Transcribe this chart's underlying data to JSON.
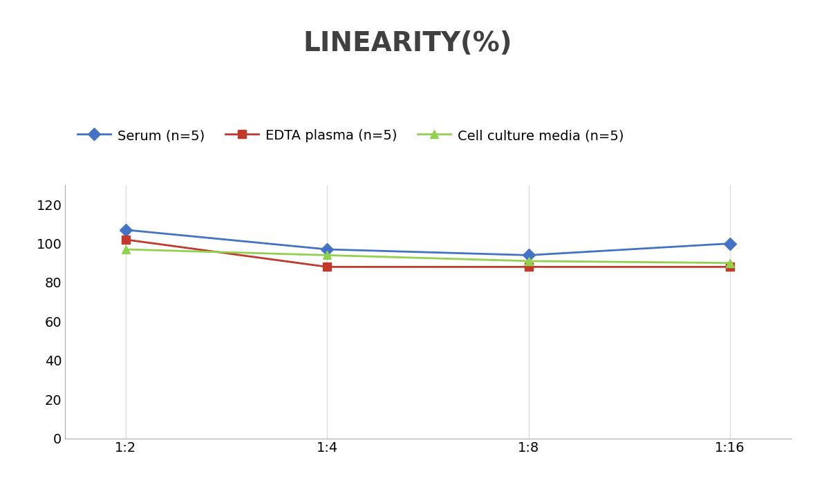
{
  "title": "LINEARITY(%)",
  "x_labels": [
    "1:2",
    "1:4",
    "1:8",
    "1:16"
  ],
  "series": [
    {
      "label": "Serum (n=5)",
      "values": [
        107,
        97,
        94,
        100
      ],
      "color": "#4472C4",
      "marker": "D",
      "marker_color": "#4472C4"
    },
    {
      "label": "EDTA plasma (n=5)",
      "values": [
        102,
        88,
        88,
        88
      ],
      "color": "#C0392B",
      "marker": "s",
      "marker_color": "#C0392B"
    },
    {
      "label": "Cell culture media (n=5)",
      "values": [
        97,
        94,
        91,
        90
      ],
      "color": "#92D050",
      "marker": "^",
      "marker_color": "#92D050"
    }
  ],
  "ylim": [
    0,
    130
  ],
  "yticks": [
    0,
    20,
    40,
    60,
    80,
    100,
    120
  ],
  "grid_color": "#DDDDDD",
  "background_color": "#FFFFFF",
  "title_fontsize": 28,
  "title_color": "#404040",
  "legend_fontsize": 14,
  "tick_fontsize": 14
}
